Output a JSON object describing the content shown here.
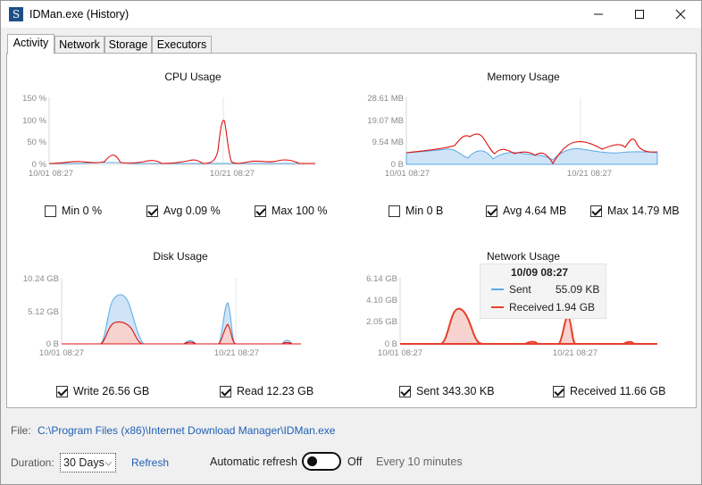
{
  "window": {
    "title": "IDMan.exe (History)",
    "icon_letter": "S"
  },
  "tabs": [
    {
      "label": "Activity"
    },
    {
      "label": "Network"
    },
    {
      "label": "Storage"
    },
    {
      "label": "Executors"
    }
  ],
  "charts": {
    "cpu": {
      "title": "CPU Usage",
      "y_ticks": [
        "150 %",
        "100 %",
        "50 %",
        "0 %"
      ],
      "x_ticks": [
        "10/01 08:27",
        "10/21 08:27"
      ],
      "checkboxes": [
        {
          "label": "Min 0 %",
          "checked": false
        },
        {
          "label": "Avg 0.09 %",
          "checked": true
        },
        {
          "label": "Max 100 %",
          "checked": true
        }
      ]
    },
    "memory": {
      "title": "Memory Usage",
      "y_ticks": [
        "28.61 MB",
        "19.07 MB",
        "9.54 MB",
        "0 B"
      ],
      "x_ticks": [
        "10/01 08:27",
        "10/21 08:27"
      ],
      "checkboxes": [
        {
          "label": "Min 0 B",
          "checked": false
        },
        {
          "label": "Avg 4.64 MB",
          "checked": true
        },
        {
          "label": "Max 14.79 MB",
          "checked": true
        }
      ]
    },
    "disk": {
      "title": "Disk Usage",
      "y_ticks": [
        "10.24 GB",
        "5.12 GB",
        "0 B"
      ],
      "x_ticks": [
        "10/01 08:27",
        "10/21 08:27"
      ],
      "checkboxes": [
        {
          "label": "Write 26.56 GB",
          "checked": true
        },
        {
          "label": "Read 12.23 GB",
          "checked": true
        }
      ]
    },
    "network": {
      "title": "Network Usage",
      "y_ticks": [
        "6.14 GB",
        "4.10 GB",
        "2.05 GB",
        "0 B"
      ],
      "x_ticks": [
        "10/01 08:27",
        "10/21 08:27"
      ],
      "checkboxes": [
        {
          "label": "Sent 343.30 KB",
          "checked": true
        },
        {
          "label": "Received 11.66 GB",
          "checked": true
        }
      ],
      "tooltip": {
        "date": "10/09 08:27",
        "rows": [
          {
            "name": "Sent",
            "value": "55.09 KB",
            "color": "#5aa9e6"
          },
          {
            "name": "Received",
            "value": "1.94 GB",
            "color": "#e8402a"
          }
        ]
      }
    }
  },
  "colors": {
    "series_blue": "#5aa9e6",
    "series_red": "#e01010",
    "link": "#1f5fb4"
  },
  "footer": {
    "file_label": "File:",
    "file_path": "C:\\Program Files (x86)\\Internet Download Manager\\IDMan.exe",
    "duration_label": "Duration:",
    "duration_value": "30 Days",
    "refresh_label": "Refresh",
    "auto_refresh_label": "Automatic refresh",
    "toggle_state": "Off",
    "interval_text": "Every 10 minutes"
  }
}
